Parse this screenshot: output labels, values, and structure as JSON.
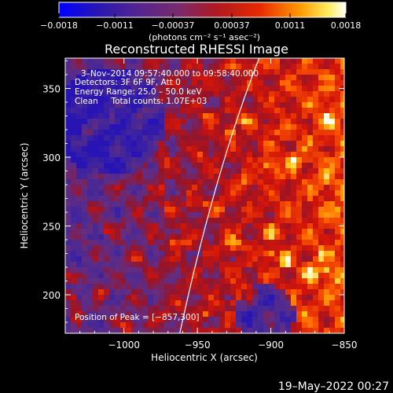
{
  "chart_data": {
    "type": "heatmap",
    "title": "Reconstructed RHESSI Image",
    "xlabel": "Heliocentric X (arcsec)",
    "ylabel": "Heliocentric Y (arcsec)",
    "xlim": [
      -1040,
      -850
    ],
    "ylim": [
      172,
      372
    ],
    "x_ticks": [
      -1000,
      -950,
      -900,
      -850
    ],
    "x_tick_labels": [
      "−1000",
      "−950",
      "−900",
      "−850"
    ],
    "y_ticks": [
      200,
      250,
      300,
      350
    ],
    "y_tick_labels": [
      "200",
      "250",
      "300",
      "350"
    ],
    "colorbar": {
      "range": [
        -0.0018,
        0.0018
      ],
      "ticks": [
        -0.0018,
        -0.0011,
        -0.00037,
        0.00037,
        0.0011,
        0.0018
      ],
      "tick_labels": [
        "−0.0018",
        "−0.0011",
        "−0.00037",
        "0.00037",
        "0.0011",
        "0.0018"
      ],
      "unit_label": "(photons cm⁻² s⁻¹ asec⁻²)",
      "colors": [
        "#0000ff",
        "#3a1d8a",
        "#6a35a5",
        "#a0182d",
        "#d01212",
        "#ff5a00",
        "#ffc000",
        "#ffffff"
      ]
    },
    "annotations": {
      "time_range": "3–Nov–2014 09:57:40.000 to 09:58:40.000",
      "detectors": "Detectors: 3F 6F 9F, Att 0",
      "energy_range": "Energy Range: 25.0 – 50.0 keV",
      "clean_counts": "Clean     Total counts: 1.07E+03",
      "peak": "Position of Peak = [−857,300]"
    },
    "limb": [
      [
        -908,
        372
      ],
      [
        -935,
        290
      ],
      [
        -962,
        172
      ]
    ],
    "peak_position": [
      -857,
      300
    ],
    "footer_timestamp": "19–May–2022 00:27"
  }
}
